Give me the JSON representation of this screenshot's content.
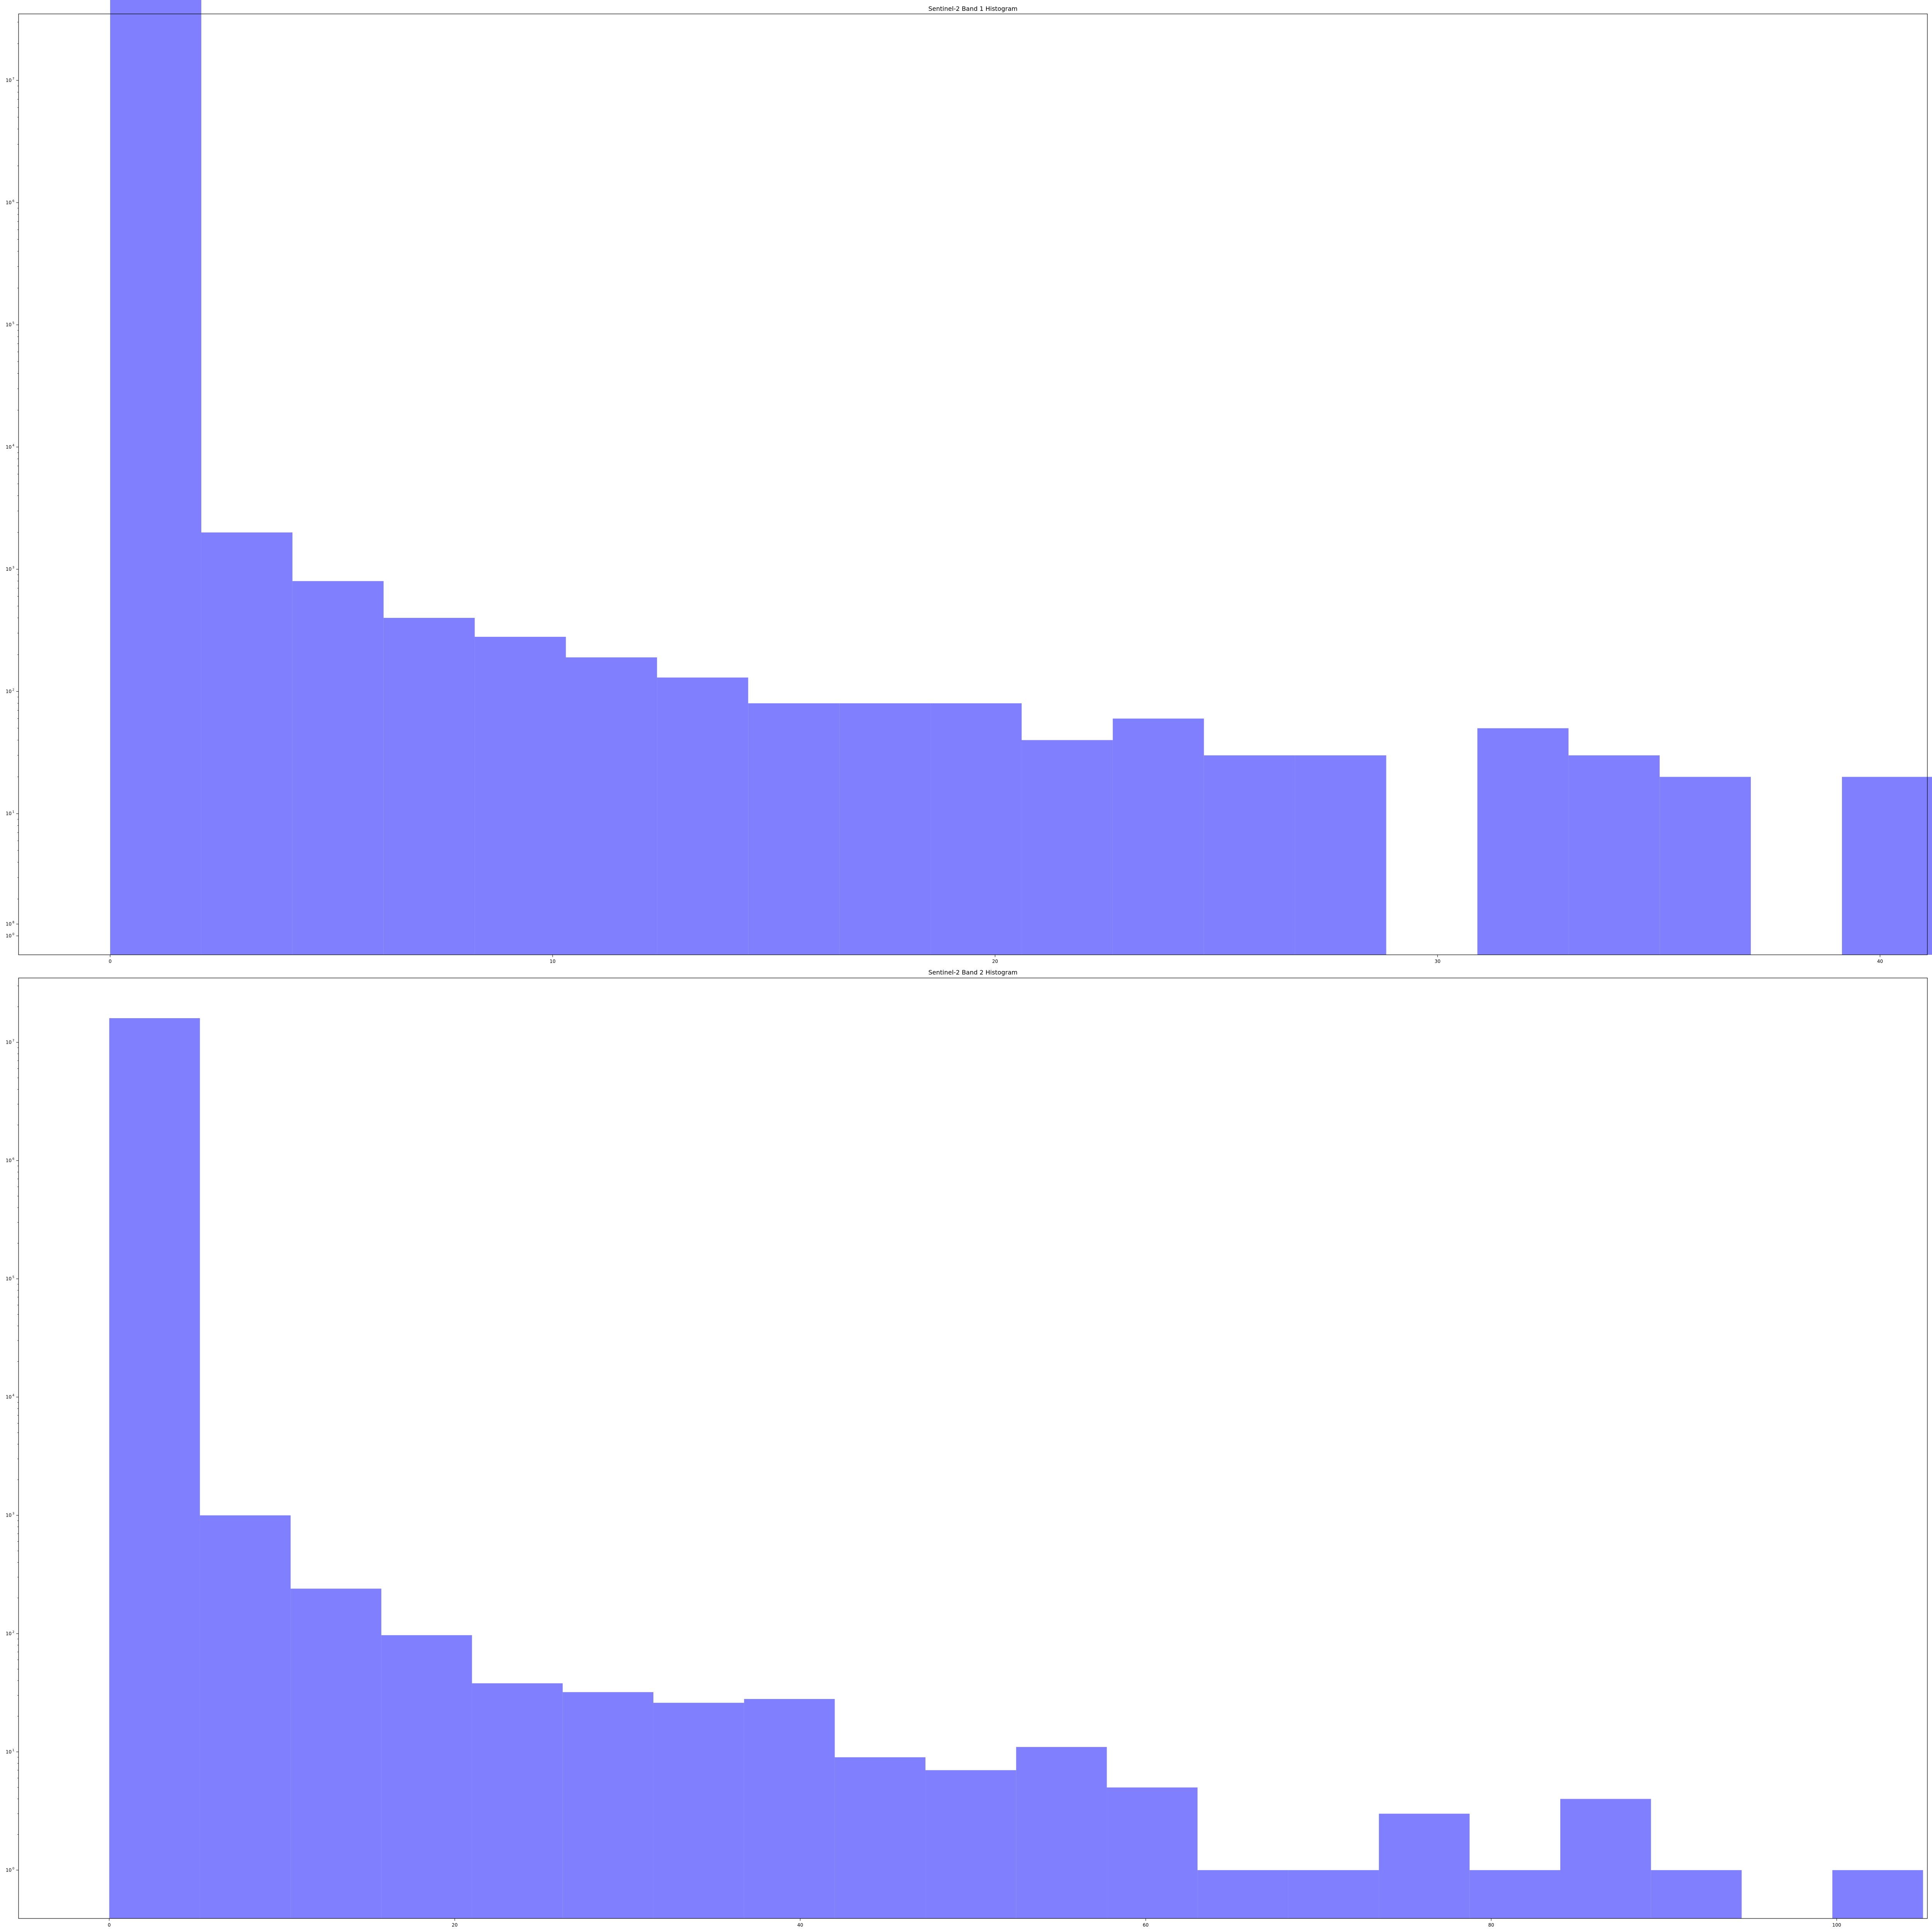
{
  "colors": {
    "bar": "#8080ff",
    "axes": "#000000",
    "background": "#ffffff"
  },
  "chart_data": [
    {
      "type": "bar",
      "title": "Sentinel-2 Band 1 Histogram",
      "xlabel": "",
      "ylabel": "",
      "yscale": "log",
      "grid": false,
      "legend": "none",
      "xlim": [
        -2.07,
        41.07
      ],
      "ylim": [
        0.7,
        35000000
      ],
      "xticks": [
        0,
        10,
        20,
        30,
        40
      ],
      "xtick_labels": [
        "0",
        "10",
        "20",
        "30",
        "40"
      ],
      "ytick_labels": [
        {
          "base": "10",
          "exp": "0"
        },
        {
          "base": "10",
          "exp": "1"
        },
        {
          "base": "10",
          "exp": "2"
        },
        {
          "base": "10",
          "exp": "3"
        },
        {
          "base": "10",
          "exp": "4"
        },
        {
          "base": "10",
          "exp": "5"
        },
        {
          "base": "10",
          "exp": "6"
        },
        {
          "base": "10",
          "exp": "7"
        },
        {
          "base": "10",
          "exp": "8"
        }
      ],
      "bin_edges": [
        0,
        2.06,
        4.12,
        6.18,
        8.24,
        10.3,
        12.36,
        14.42,
        16.48,
        18.54,
        20.6,
        22.66,
        24.72,
        26.78,
        28.84,
        30.9,
        32.96,
        35.02,
        37.08,
        39.14,
        41.2
      ],
      "values": [
        16000000,
        20,
        8,
        4,
        2.8,
        1.9,
        1.3,
        0.8,
        0.8,
        0.8,
        0.4,
        0.6,
        0.3,
        0.3,
        0,
        0.5,
        0.3,
        0.2,
        0,
        0.2
      ],
      "values_scale": 100
    },
    {
      "type": "bar",
      "title": "Sentinel-2 Band 2 Histogram",
      "xlabel": "",
      "ylabel": "",
      "yscale": "log",
      "grid": false,
      "legend": "none",
      "xlim": [
        -5.25,
        105.25
      ],
      "ylim": [
        0.39,
        35000000
      ],
      "xticks": [
        0,
        20,
        40,
        60,
        80,
        100
      ],
      "xtick_labels": [
        "0",
        "20",
        "40",
        "60",
        "80",
        "100"
      ],
      "ytick_labels": [
        {
          "base": "10",
          "exp": "0"
        },
        {
          "base": "10",
          "exp": "1"
        },
        {
          "base": "10",
          "exp": "2"
        },
        {
          "base": "10",
          "exp": "3"
        },
        {
          "base": "10",
          "exp": "4"
        },
        {
          "base": "10",
          "exp": "5"
        },
        {
          "base": "10",
          "exp": "6"
        },
        {
          "base": "10",
          "exp": "7"
        },
        {
          "base": "10",
          "exp": "8"
        }
      ],
      "bin_edges": [
        0,
        5.25,
        10.5,
        15.75,
        21,
        26.25,
        31.5,
        36.75,
        42,
        47.25,
        52.5,
        57.75,
        63,
        68.25,
        73.5,
        78.75,
        84,
        89.25,
        94.5,
        99.75,
        105
      ],
      "values": [
        16000000,
        1000,
        240,
        97,
        38,
        32,
        26,
        28,
        9,
        7,
        11,
        5,
        1,
        1,
        3,
        1,
        4,
        1,
        0,
        1
      ],
      "values_scale": 1
    }
  ]
}
